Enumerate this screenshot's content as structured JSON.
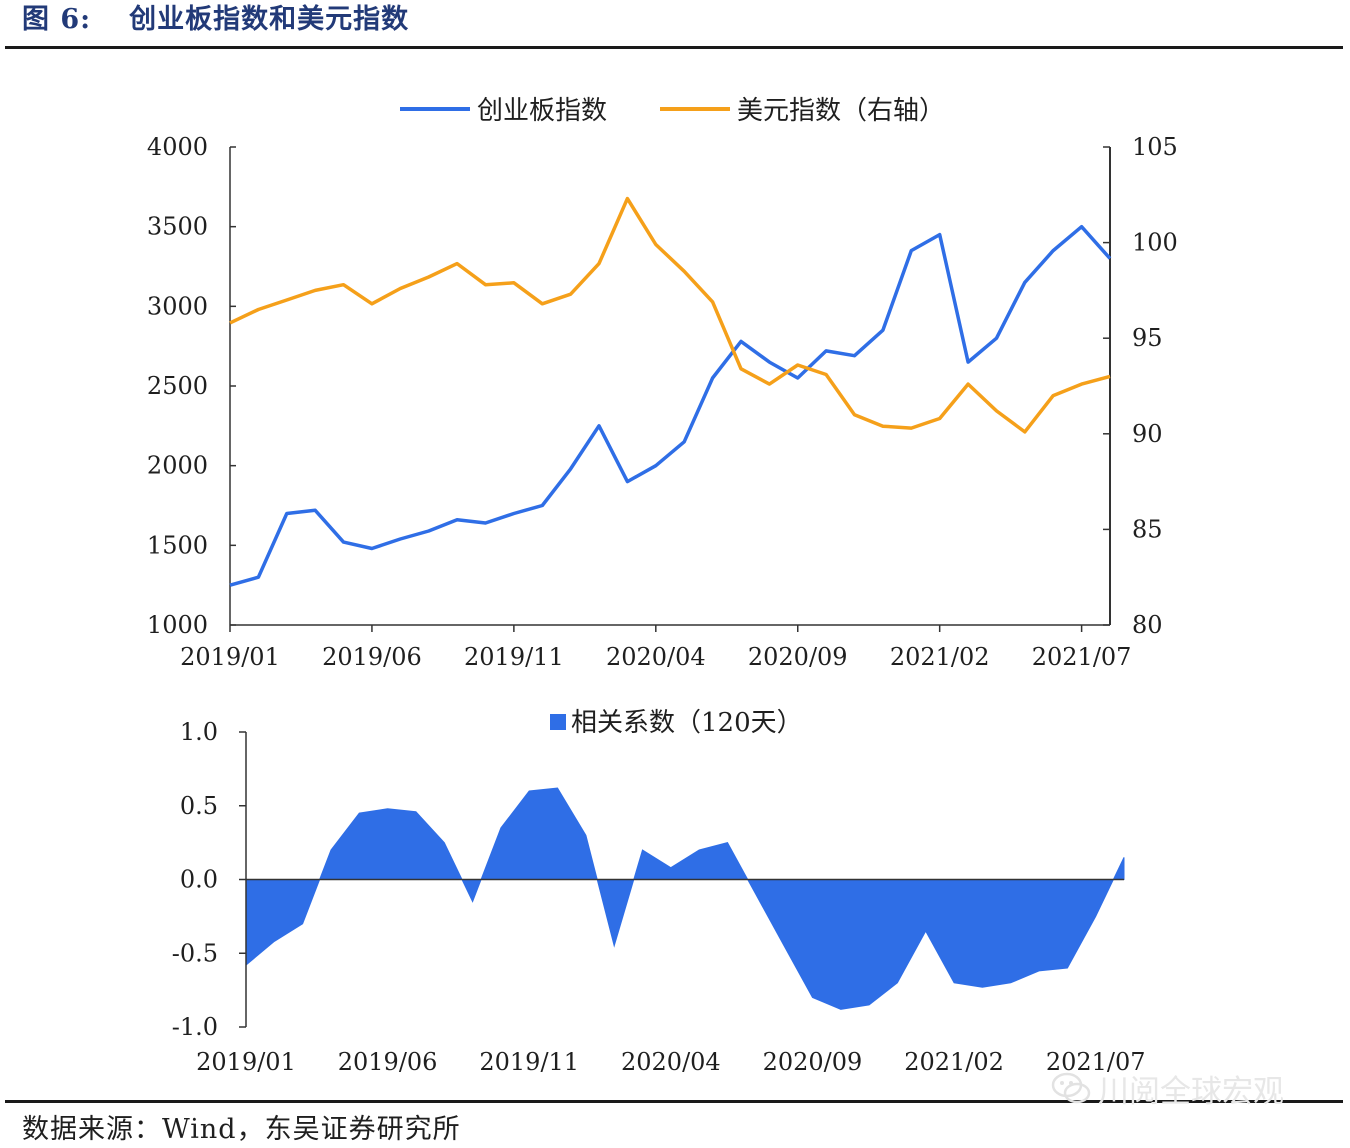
{
  "figure": {
    "label": "图 6:",
    "title": "创业板指数和美元指数",
    "source": "数据来源：Wind，东吴证券研究所",
    "watermark": "川阅全球宏观"
  },
  "colors": {
    "blue": "#2f6ee6",
    "orange": "#f5a01a",
    "bar_blue": "#2f6ee6",
    "title": "#223a78"
  },
  "chart_data": [
    {
      "type": "line",
      "x_ticks": [
        "2019/01",
        "2019/06",
        "2019/11",
        "2020/04",
        "2020/09",
        "2021/02",
        "2021/07"
      ],
      "y_left": {
        "ticks": [
          "4000",
          "3500",
          "3000",
          "2500",
          "2000",
          "1500",
          "1000"
        ],
        "range": [
          1000,
          4000
        ]
      },
      "y_right": {
        "ticks": [
          "105",
          "100",
          "95",
          "90",
          "85",
          "80"
        ],
        "range": [
          80,
          105
        ]
      },
      "legend_position": "top-center",
      "series": [
        {
          "name": "创业板指数",
          "axis": "left",
          "color": "#2f6ee6",
          "x": [
            "2019/01",
            "2019/02",
            "2019/03",
            "2019/04",
            "2019/05",
            "2019/06",
            "2019/07",
            "2019/08",
            "2019/09",
            "2019/10",
            "2019/11",
            "2019/12",
            "2020/01",
            "2020/02",
            "2020/03",
            "2020/04",
            "2020/05",
            "2020/06",
            "2020/07",
            "2020/08",
            "2020/09",
            "2020/10",
            "2020/11",
            "2020/12",
            "2021/01",
            "2021/02",
            "2021/03",
            "2021/04",
            "2021/05",
            "2021/06",
            "2021/07",
            "2021/08"
          ],
          "values": [
            1250,
            1300,
            1700,
            1720,
            1520,
            1480,
            1540,
            1590,
            1660,
            1640,
            1700,
            1750,
            1980,
            2250,
            1900,
            2000,
            2150,
            2550,
            2780,
            2650,
            2550,
            2720,
            2690,
            2850,
            3350,
            3450,
            2650,
            2800,
            3150,
            3350,
            3500,
            3300
          ]
        },
        {
          "name": "美元指数（右轴）",
          "axis": "right",
          "color": "#f5a01a",
          "x": [
            "2019/01",
            "2019/02",
            "2019/03",
            "2019/04",
            "2019/05",
            "2019/06",
            "2019/07",
            "2019/08",
            "2019/09",
            "2019/10",
            "2019/11",
            "2019/12",
            "2020/01",
            "2020/02",
            "2020/03",
            "2020/04",
            "2020/05",
            "2020/06",
            "2020/07",
            "2020/08",
            "2020/09",
            "2020/10",
            "2020/11",
            "2020/12",
            "2021/01",
            "2021/02",
            "2021/03",
            "2021/04",
            "2021/05",
            "2021/06",
            "2021/07",
            "2021/08"
          ],
          "values": [
            95.8,
            96.5,
            97.0,
            97.5,
            97.8,
            96.8,
            97.6,
            98.2,
            98.9,
            97.8,
            97.9,
            96.8,
            97.3,
            98.9,
            102.3,
            99.9,
            98.5,
            96.9,
            93.4,
            92.6,
            93.6,
            93.1,
            91.0,
            90.4,
            90.3,
            90.8,
            92.6,
            91.2,
            90.1,
            92.0,
            92.6,
            93.0
          ]
        }
      ]
    },
    {
      "type": "area",
      "legend": "相关系数（120天）",
      "legend_position": "top-center",
      "x_ticks": [
        "2019/01",
        "2019/06",
        "2019/11",
        "2020/04",
        "2020/09",
        "2021/02",
        "2021/07"
      ],
      "y": {
        "ticks": [
          "1.0",
          "0.5",
          "0.0",
          "-0.5",
          "-1.0"
        ],
        "range": [
          -1.0,
          1.0
        ]
      },
      "color": "#2f6ee6",
      "series": [
        {
          "x": [
            "2019/01",
            "2019/02",
            "2019/03",
            "2019/04",
            "2019/05",
            "2019/06",
            "2019/07",
            "2019/08",
            "2019/09",
            "2019/10",
            "2019/11",
            "2019/12",
            "2020/01",
            "2020/02",
            "2020/03",
            "2020/04",
            "2020/05",
            "2020/06",
            "2020/07",
            "2020/08",
            "2020/09",
            "2020/10",
            "2020/11",
            "2020/12",
            "2021/01",
            "2021/02",
            "2021/03",
            "2021/04",
            "2021/05",
            "2021/06",
            "2021/07",
            "2021/08"
          ],
          "values": [
            -0.58,
            -0.42,
            -0.3,
            0.2,
            0.45,
            0.48,
            0.46,
            0.25,
            -0.15,
            0.35,
            0.6,
            0.62,
            0.3,
            -0.45,
            0.2,
            0.08,
            0.2,
            0.25,
            -0.1,
            -0.45,
            -0.8,
            -0.88,
            -0.85,
            -0.7,
            -0.35,
            -0.7,
            -0.73,
            -0.7,
            -0.62,
            -0.6,
            -0.25,
            0.15
          ]
        }
      ]
    }
  ]
}
